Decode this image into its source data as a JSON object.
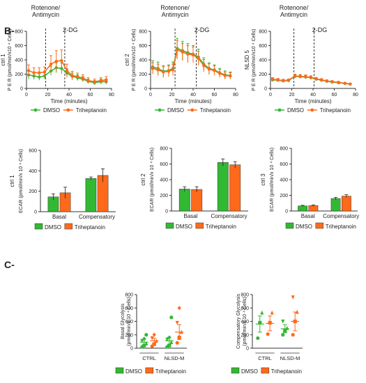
{
  "panel_labels": [
    "B-",
    "C-"
  ],
  "colors": {
    "dmso": "#33b833",
    "trihep": "#ff6a1a",
    "axis": "#333333"
  },
  "chart_data": [
    {
      "type": "line",
      "id": "per1",
      "ylabel": "P E R (pmol/min/x10 ⁴ Cells)",
      "side_label": "ctrl 1",
      "xlabel": "Time (minutes)",
      "xlim": [
        0,
        80
      ],
      "ylim": [
        0,
        800
      ],
      "xticks": [
        0,
        20,
        40,
        60,
        80
      ],
      "yticks": [
        0,
        200,
        400,
        600,
        800
      ],
      "marker_top": "Rotenone/ Antimycin",
      "marker_top_lines": [
        "Rotenone/",
        "Antimycin"
      ],
      "marker_2": "2-DG",
      "vlines": [
        18,
        36
      ],
      "legend": [
        "DMSO",
        "Triheptanoin"
      ],
      "series": [
        {
          "name": "DMSO",
          "x": [
            2,
            7,
            12,
            17,
            23,
            28,
            33,
            38,
            43,
            48,
            53,
            58,
            64,
            70,
            75
          ],
          "y": [
            190,
            175,
            160,
            175,
            245,
            290,
            280,
            215,
            170,
            150,
            130,
            100,
            80,
            95,
            95
          ],
          "err": [
            60,
            50,
            45,
            45,
            60,
            70,
            75,
            60,
            45,
            40,
            35,
            30,
            30,
            35,
            35
          ]
        },
        {
          "name": "Triheptanoin",
          "x": [
            2,
            7,
            12,
            17,
            23,
            28,
            33,
            38,
            43,
            48,
            53,
            58,
            64,
            70,
            75
          ],
          "y": [
            250,
            220,
            220,
            230,
            340,
            380,
            390,
            250,
            180,
            165,
            145,
            110,
            95,
            110,
            120
          ],
          "err": [
            80,
            70,
            70,
            70,
            120,
            150,
            150,
            90,
            60,
            50,
            45,
            40,
            35,
            40,
            45
          ]
        }
      ]
    },
    {
      "type": "line",
      "id": "per2",
      "ylabel": "P E R (pmol/min/x10 ⁴ Cells)",
      "side_label": "ctrl 2",
      "xlabel": "Time (minutes)",
      "xlim": [
        0,
        80
      ],
      "ylim": [
        0,
        800
      ],
      "xticks": [
        0,
        20,
        40,
        60,
        80
      ],
      "yticks": [
        0,
        200,
        400,
        600,
        800
      ],
      "marker_top": "Rotenone/ Antimycin",
      "marker_top_lines": [
        "Rotenone/",
        "Antimycin"
      ],
      "marker_2": "2-DG",
      "vlines": [
        23,
        43
      ],
      "legend": [
        "DMSO",
        "Triheptanoin"
      ],
      "series": [
        {
          "name": "DMSO",
          "x": [
            2,
            7,
            12,
            17,
            21,
            25,
            30,
            35,
            40,
            45,
            50,
            55,
            60,
            65,
            70,
            75
          ],
          "y": [
            300,
            280,
            240,
            250,
            280,
            560,
            530,
            500,
            480,
            440,
            340,
            280,
            260,
            220,
            190,
            180
          ],
          "err": [
            90,
            90,
            80,
            80,
            90,
            140,
            130,
            130,
            120,
            110,
            90,
            80,
            70,
            60,
            55,
            50
          ]
        },
        {
          "name": "Triheptanoin",
          "x": [
            2,
            7,
            12,
            17,
            21,
            25,
            30,
            35,
            40,
            45,
            50,
            55,
            60,
            65,
            70,
            75
          ],
          "y": [
            280,
            260,
            230,
            240,
            260,
            540,
            510,
            480,
            470,
            420,
            320,
            270,
            250,
            210,
            180,
            175
          ],
          "err": [
            80,
            80,
            75,
            75,
            80,
            130,
            120,
            120,
            110,
            100,
            85,
            75,
            65,
            55,
            50,
            45
          ]
        }
      ]
    },
    {
      "type": "line",
      "id": "per3",
      "ylabel": "P E R (pmol/min/x10 ⁴ Cells)",
      "side_label": "NLSD 5",
      "xlabel": "Time (minutes)",
      "xlim": [
        0,
        80
      ],
      "ylim": [
        0,
        800
      ],
      "xticks": [
        0,
        20,
        40,
        60,
        80
      ],
      "yticks": [
        0,
        200,
        400,
        600,
        800
      ],
      "marker_top": "Rotenone/ Antimycin",
      "marker_top_lines": [
        "Rotenone/",
        "Antimycin"
      ],
      "marker_2": "2-DG",
      "vlines": [
        22,
        41
      ],
      "legend": [
        "DMSO",
        "Triheptanoin"
      ],
      "series": [
        {
          "name": "DMSO",
          "x": [
            2,
            7,
            12,
            17,
            23,
            28,
            33,
            38,
            43,
            48,
            53,
            58,
            64,
            70,
            75
          ],
          "y": [
            120,
            115,
            105,
            110,
            170,
            165,
            160,
            150,
            130,
            115,
            100,
            90,
            80,
            70,
            60
          ],
          "err": [
            20,
            20,
            18,
            18,
            25,
            25,
            25,
            22,
            20,
            18,
            16,
            15,
            14,
            12,
            12
          ]
        },
        {
          "name": "Triheptanoin",
          "x": [
            2,
            7,
            12,
            17,
            23,
            28,
            33,
            38,
            43,
            48,
            53,
            58,
            64,
            70,
            75
          ],
          "y": [
            130,
            120,
            110,
            115,
            175,
            170,
            165,
            155,
            135,
            120,
            105,
            95,
            85,
            72,
            62
          ],
          "err": [
            22,
            20,
            18,
            18,
            25,
            25,
            25,
            22,
            20,
            18,
            16,
            15,
            14,
            12,
            12
          ]
        }
      ]
    },
    {
      "type": "bar",
      "id": "ecar1",
      "ylabel": "ECAR (pmol/min/x 10 ⁴ Cells)",
      "side_label": "ctrl 1",
      "categories": [
        "Basal",
        "Compensatory"
      ],
      "ylim": [
        0,
        600
      ],
      "yticks": [
        0,
        200,
        400,
        600
      ],
      "legend": [
        "DMSO",
        "Triheptanoin"
      ],
      "series": [
        {
          "name": "DMSO",
          "values": [
            145,
            325
          ],
          "err": [
            30,
            15
          ]
        },
        {
          "name": "Triheptanoin",
          "values": [
            185,
            355
          ],
          "err": [
            55,
            65
          ]
        }
      ]
    },
    {
      "type": "bar",
      "id": "ecar2",
      "ylabel": "ECAR (pmol/min/x 10 ⁴ Cells)",
      "side_label": "ctrl 2",
      "categories": [
        "Basal",
        "Compensatory"
      ],
      "ylim": [
        0,
        800
      ],
      "yticks": [
        0,
        200,
        400,
        600,
        800
      ],
      "legend": [
        "DMSO",
        "Triheptanoin"
      ],
      "series": [
        {
          "name": "DMSO",
          "values": [
            280,
            620
          ],
          "err": [
            30,
            45
          ]
        },
        {
          "name": "Triheptanoin",
          "values": [
            275,
            590
          ],
          "err": [
            35,
            40
          ]
        }
      ]
    },
    {
      "type": "bar",
      "id": "ecar3",
      "ylabel": "ECAR (pmol/min/x 10 ⁴ Cells)",
      "side_label": "ctrl 3",
      "categories": [
        "Basal",
        "Compensatory"
      ],
      "ylim": [
        0,
        800
      ],
      "yticks": [
        0,
        200,
        400,
        600,
        800
      ],
      "legend": [
        "DMSO",
        "Triheptanoin"
      ],
      "series": [
        {
          "name": "DMSO",
          "values": [
            65,
            160
          ],
          "err": [
            8,
            15
          ]
        },
        {
          "name": "Triheptanoin",
          "values": [
            70,
            190
          ],
          "err": [
            8,
            18
          ]
        }
      ]
    },
    {
      "type": "scatter",
      "id": "basal",
      "ylabel": "Basal Glycolysis (pmol/min/x 10 ⁴ Cells)",
      "ylabel_lines": [
        "Basal Glycolysis",
        "(pmol/min/x 10 ⁴ Cells)"
      ],
      "groups": [
        "CTRL",
        "NLSD-M"
      ],
      "ylim": [
        0,
        800
      ],
      "yticks": [
        0,
        200,
        400,
        600,
        800
      ],
      "legend": [
        "DMSO",
        "Triheptanoin"
      ],
      "series": [
        {
          "name": "DMSO",
          "points": [
            [
              0,
              20
            ],
            [
              0,
              40
            ],
            [
              0,
              70
            ],
            [
              0,
              110
            ],
            [
              0,
              140
            ],
            [
              0,
              200
            ],
            [
              1,
              20
            ],
            [
              1,
              40
            ],
            [
              1,
              90
            ],
            [
              1,
              130
            ],
            [
              1,
              160
            ],
            [
              1,
              460
            ]
          ],
          "mean": [
            90,
            110
          ],
          "err": [
            45,
            55
          ]
        },
        {
          "name": "Triheptanoin",
          "points": [
            [
              0,
              30
            ],
            [
              0,
              60
            ],
            [
              0,
              110
            ],
            [
              0,
              150
            ],
            [
              0,
              200
            ],
            [
              1,
              80
            ],
            [
              1,
              160
            ],
            [
              1,
              240
            ],
            [
              1,
              380
            ],
            [
              1,
              600
            ]
          ],
          "mean": [
            110,
            240
          ],
          "err": [
            40,
            110
          ]
        }
      ]
    },
    {
      "type": "scatter",
      "id": "comp",
      "ylabel": "Compensatory Glycolysis (pmol/min/x 10 ⁴ Cells)",
      "ylabel_lines": [
        "Compensatory Glycolysis",
        "(pmol/min/x 10 ⁴ Cells)"
      ],
      "groups": [
        "CTRL",
        "NLSD-M"
      ],
      "ylim": [
        0,
        800
      ],
      "yticks": [
        0,
        200,
        400,
        600,
        800
      ],
      "legend": [
        "DMSO",
        "Triheptanoin"
      ],
      "series": [
        {
          "name": "DMSO",
          "points": [
            [
              0,
              150
            ],
            [
              0,
              380
            ],
            [
              0,
              530
            ],
            [
              1,
              200
            ],
            [
              1,
              260
            ],
            [
              1,
              300
            ],
            [
              1,
              400
            ]
          ],
          "mean": [
            360,
            290
          ],
          "err": [
            120,
            60
          ]
        },
        {
          "name": "Triheptanoin",
          "points": [
            [
              0,
              210
            ],
            [
              0,
              380
            ],
            [
              0,
              530
            ],
            [
              1,
              200
            ],
            [
              1,
              400
            ],
            [
              1,
              540
            ],
            [
              1,
              760
            ]
          ],
          "mean": [
            370,
            400
          ],
          "err": [
            110,
            140
          ]
        }
      ]
    }
  ]
}
